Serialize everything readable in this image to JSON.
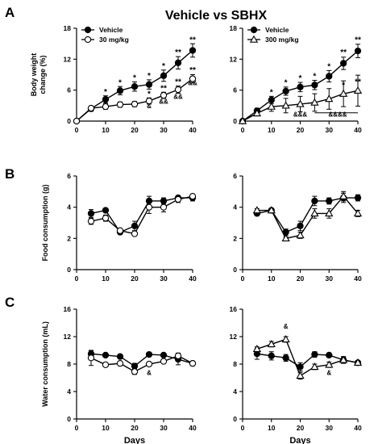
{
  "figure": {
    "title": "Vehicle vs  SBHX",
    "panel_letters": [
      "A",
      "B",
      "C"
    ]
  },
  "colors": {
    "ink": "#000000",
    "open_fill": "#ffffff"
  },
  "chart_data": [
    {
      "id": "A-left",
      "type": "line",
      "ylabel": "Body weight change (%)",
      "ylabel_lines": [
        "Body weight",
        "change (%)"
      ],
      "xlabel": "",
      "ylim": [
        0,
        18
      ],
      "yticks": [
        "0",
        "6",
        "12",
        "18"
      ],
      "xlim": [
        0,
        40
      ],
      "xticks": [
        "0",
        "10",
        "20",
        "30",
        "40"
      ],
      "legend": "top-left",
      "x": [
        0,
        5,
        10,
        15,
        20,
        25,
        30,
        35,
        40
      ],
      "series": [
        {
          "name": "Vehicle",
          "marker": "filled-circle",
          "values": [
            0,
            2.4,
            4.2,
            5.9,
            6.7,
            7.1,
            8.8,
            11.3,
            13.7
          ],
          "err": [
            0,
            0.5,
            0.7,
            0.8,
            0.9,
            0.9,
            1.1,
            1.2,
            1.3
          ]
        },
        {
          "name": "30 mg/kg",
          "marker": "open-circle",
          "values": [
            0,
            2.5,
            2.8,
            3.2,
            3.3,
            3.9,
            5.0,
            6.1,
            8.2
          ],
          "err": [
            0,
            0.4,
            0.5,
            0.5,
            0.5,
            0.6,
            0.6,
            0.7,
            0.8
          ]
        }
      ],
      "annotations": [
        {
          "x": 10,
          "text": "*",
          "y": 5.2
        },
        {
          "x": 15,
          "text": "*",
          "y": 7.0
        },
        {
          "x": 20,
          "text": "*",
          "y": 7.9
        },
        {
          "x": 25,
          "text": "*",
          "y": 8.3
        },
        {
          "x": 30,
          "text": "*",
          "y": 10.2
        },
        {
          "x": 35,
          "text": "**",
          "y": 12.8
        },
        {
          "x": 40,
          "text": "**",
          "y": 15.3
        },
        {
          "x": 25,
          "text": "*",
          "y": 4.8
        },
        {
          "x": 25,
          "text": "&",
          "y": 2.5
        },
        {
          "x": 30,
          "text": "**",
          "y": 5.9
        },
        {
          "x": 30,
          "text": "&&",
          "y": 3.4
        },
        {
          "x": 35,
          "text": "**",
          "y": 7.1
        },
        {
          "x": 35,
          "text": "&&",
          "y": 4.3
        },
        {
          "x": 40,
          "text": "**",
          "y": 9.4
        },
        {
          "x": 40,
          "text": "&&",
          "y": 7.0
        }
      ]
    },
    {
      "id": "A-right",
      "type": "line",
      "ylabel": "",
      "xlabel": "",
      "ylim": [
        0,
        18
      ],
      "yticks": [
        "0",
        "6",
        "12",
        "18"
      ],
      "xlim": [
        0,
        40
      ],
      "xticks": [
        "0",
        "10",
        "20",
        "30",
        "40"
      ],
      "legend": "top-left",
      "x": [
        0,
        5,
        10,
        15,
        20,
        25,
        30,
        35,
        40
      ],
      "series": [
        {
          "name": "Vehicle",
          "marker": "filled-circle",
          "values": [
            0,
            2.0,
            4.1,
            5.8,
            6.6,
            7.0,
            8.7,
            11.2,
            13.6
          ],
          "err": [
            0,
            0.5,
            0.7,
            0.8,
            0.9,
            0.9,
            1.1,
            1.2,
            1.3
          ]
        },
        {
          "name": "300 mg/kg",
          "marker": "open-triangle",
          "values": [
            0,
            1.5,
            2.8,
            3.0,
            3.3,
            3.6,
            4.3,
            5.3,
            5.9
          ],
          "err": [
            0,
            0.5,
            0.9,
            1.4,
            1.5,
            1.7,
            2.0,
            2.5,
            3.0
          ]
        }
      ],
      "annotations": [
        {
          "x": 10,
          "text": "*",
          "y": 5.1
        },
        {
          "x": 15,
          "text": "*",
          "y": 7.0
        },
        {
          "x": 20,
          "text": "*",
          "y": 7.8
        },
        {
          "x": 25,
          "text": "*",
          "y": 8.2
        },
        {
          "x": 30,
          "text": "*",
          "y": 10.1
        },
        {
          "x": 35,
          "text": "**",
          "y": 12.8
        },
        {
          "x": 40,
          "text": "**",
          "y": 15.3
        },
        {
          "x": 35,
          "text": "*",
          "y": 6.5
        },
        {
          "x": 40,
          "text": "**",
          "y": 7.1
        },
        {
          "x": 20,
          "text": "&&&",
          "y": 0.9
        },
        {
          "x": 33,
          "text": "&&&&",
          "y": 0.9
        }
      ],
      "bracket": {
        "x": [
          25,
          40
        ],
        "y": 1.6
      }
    },
    {
      "id": "B-left",
      "type": "line",
      "ylabel": "Food consumption (g)",
      "xlabel": "",
      "ylim": [
        0,
        6
      ],
      "yticks": [
        "0",
        "2",
        "4",
        "6"
      ],
      "xlim": [
        0,
        40
      ],
      "xticks": [
        "0",
        "10",
        "20",
        "30",
        "40"
      ],
      "x": [
        5,
        10,
        15,
        20,
        25,
        30,
        35,
        40
      ],
      "series": [
        {
          "name": "Vehicle",
          "marker": "filled-circle",
          "values": [
            3.6,
            3.8,
            2.4,
            2.8,
            4.4,
            4.4,
            4.6,
            4.6
          ],
          "err": [
            0.25,
            0.1,
            0.1,
            0.3,
            0.3,
            0.2,
            0.1,
            0.2
          ]
        },
        {
          "name": "30 mg/kg",
          "marker": "open-circle",
          "values": [
            3.1,
            3.3,
            2.5,
            2.3,
            4.0,
            4.0,
            4.5,
            4.7
          ],
          "err": [
            0.2,
            0.2,
            0.1,
            0.1,
            0.4,
            0.3,
            0.2,
            0.1
          ]
        }
      ]
    },
    {
      "id": "B-right",
      "type": "line",
      "ylabel": "",
      "xlabel": "",
      "ylim": [
        0,
        6
      ],
      "yticks": [
        "0",
        "2",
        "4",
        "6"
      ],
      "xlim": [
        0,
        40
      ],
      "xticks": [
        "0",
        "10",
        "20",
        "30",
        "40"
      ],
      "x": [
        5,
        10,
        15,
        20,
        25,
        30,
        35,
        40
      ],
      "series": [
        {
          "name": "Vehicle",
          "marker": "filled-circle",
          "values": [
            3.6,
            3.8,
            2.4,
            2.8,
            4.4,
            4.4,
            4.6,
            4.6
          ],
          "err": [
            0.1,
            0.1,
            0.2,
            0.3,
            0.3,
            0.2,
            0.3,
            0.2
          ]
        },
        {
          "name": "300 mg/kg",
          "marker": "open-triangle",
          "values": [
            3.8,
            3.8,
            2.0,
            2.2,
            3.6,
            3.6,
            4.7,
            3.6
          ],
          "err": [
            0.1,
            0.1,
            0.1,
            0.2,
            0.3,
            0.3,
            0.3,
            0.2
          ]
        }
      ]
    },
    {
      "id": "C-left",
      "type": "line",
      "ylabel": "Water consumption (mL)",
      "xlabel": "Days",
      "ylim": [
        0,
        16
      ],
      "yticks": [
        "0",
        "4",
        "8",
        "12",
        "16"
      ],
      "xlim": [
        0,
        40
      ],
      "xticks": [
        "0",
        "10",
        "20",
        "30",
        "40"
      ],
      "x": [
        5,
        10,
        15,
        20,
        25,
        30,
        35,
        40
      ],
      "series": [
        {
          "name": "Vehicle",
          "marker": "filled-circle",
          "values": [
            9.5,
            9.3,
            9.1,
            7.7,
            9.4,
            9.3,
            8.7,
            8.1
          ],
          "err": [
            0.4,
            0.3,
            0.3,
            0.4,
            0.3,
            0.3,
            0.8,
            0.3
          ]
        },
        {
          "name": "30 mg/kg",
          "marker": "open-circle",
          "values": [
            8.9,
            7.9,
            8.1,
            6.9,
            8.0,
            8.4,
            9.2,
            8.1
          ],
          "err": [
            1.1,
            0.3,
            0.3,
            0.4,
            0.3,
            0.3,
            0.4,
            0.3
          ]
        }
      ],
      "annotations": [
        {
          "x": 25,
          "text": "&",
          "y": 6.4
        }
      ]
    },
    {
      "id": "C-right",
      "type": "line",
      "ylabel": "",
      "xlabel": "Days",
      "ylim": [
        0,
        16
      ],
      "yticks": [
        "0",
        "4",
        "8",
        "12",
        "16"
      ],
      "xlim": [
        0,
        40
      ],
      "xticks": [
        "0",
        "10",
        "20",
        "30",
        "40"
      ],
      "x": [
        5,
        10,
        15,
        20,
        25,
        30,
        35,
        40
      ],
      "series": [
        {
          "name": "Vehicle",
          "marker": "filled-circle",
          "values": [
            9.5,
            9.2,
            8.9,
            7.6,
            9.4,
            9.3,
            8.6,
            8.2
          ],
          "err": [
            0.8,
            0.6,
            0.5,
            0.6,
            0.4,
            0.3,
            0.5,
            0.3
          ]
        },
        {
          "name": "300 mg/kg",
          "marker": "open-triangle",
          "values": [
            10.2,
            10.9,
            11.6,
            6.3,
            7.6,
            7.9,
            8.6,
            8.2
          ],
          "err": [
            0.3,
            0.4,
            0.4,
            0.5,
            0.4,
            0.4,
            0.4,
            0.3
          ]
        }
      ],
      "annotations": [
        {
          "x": 15,
          "text": "&",
          "y": 13.2
        },
        {
          "x": 30,
          "text": "&",
          "y": 6.4
        }
      ]
    }
  ]
}
